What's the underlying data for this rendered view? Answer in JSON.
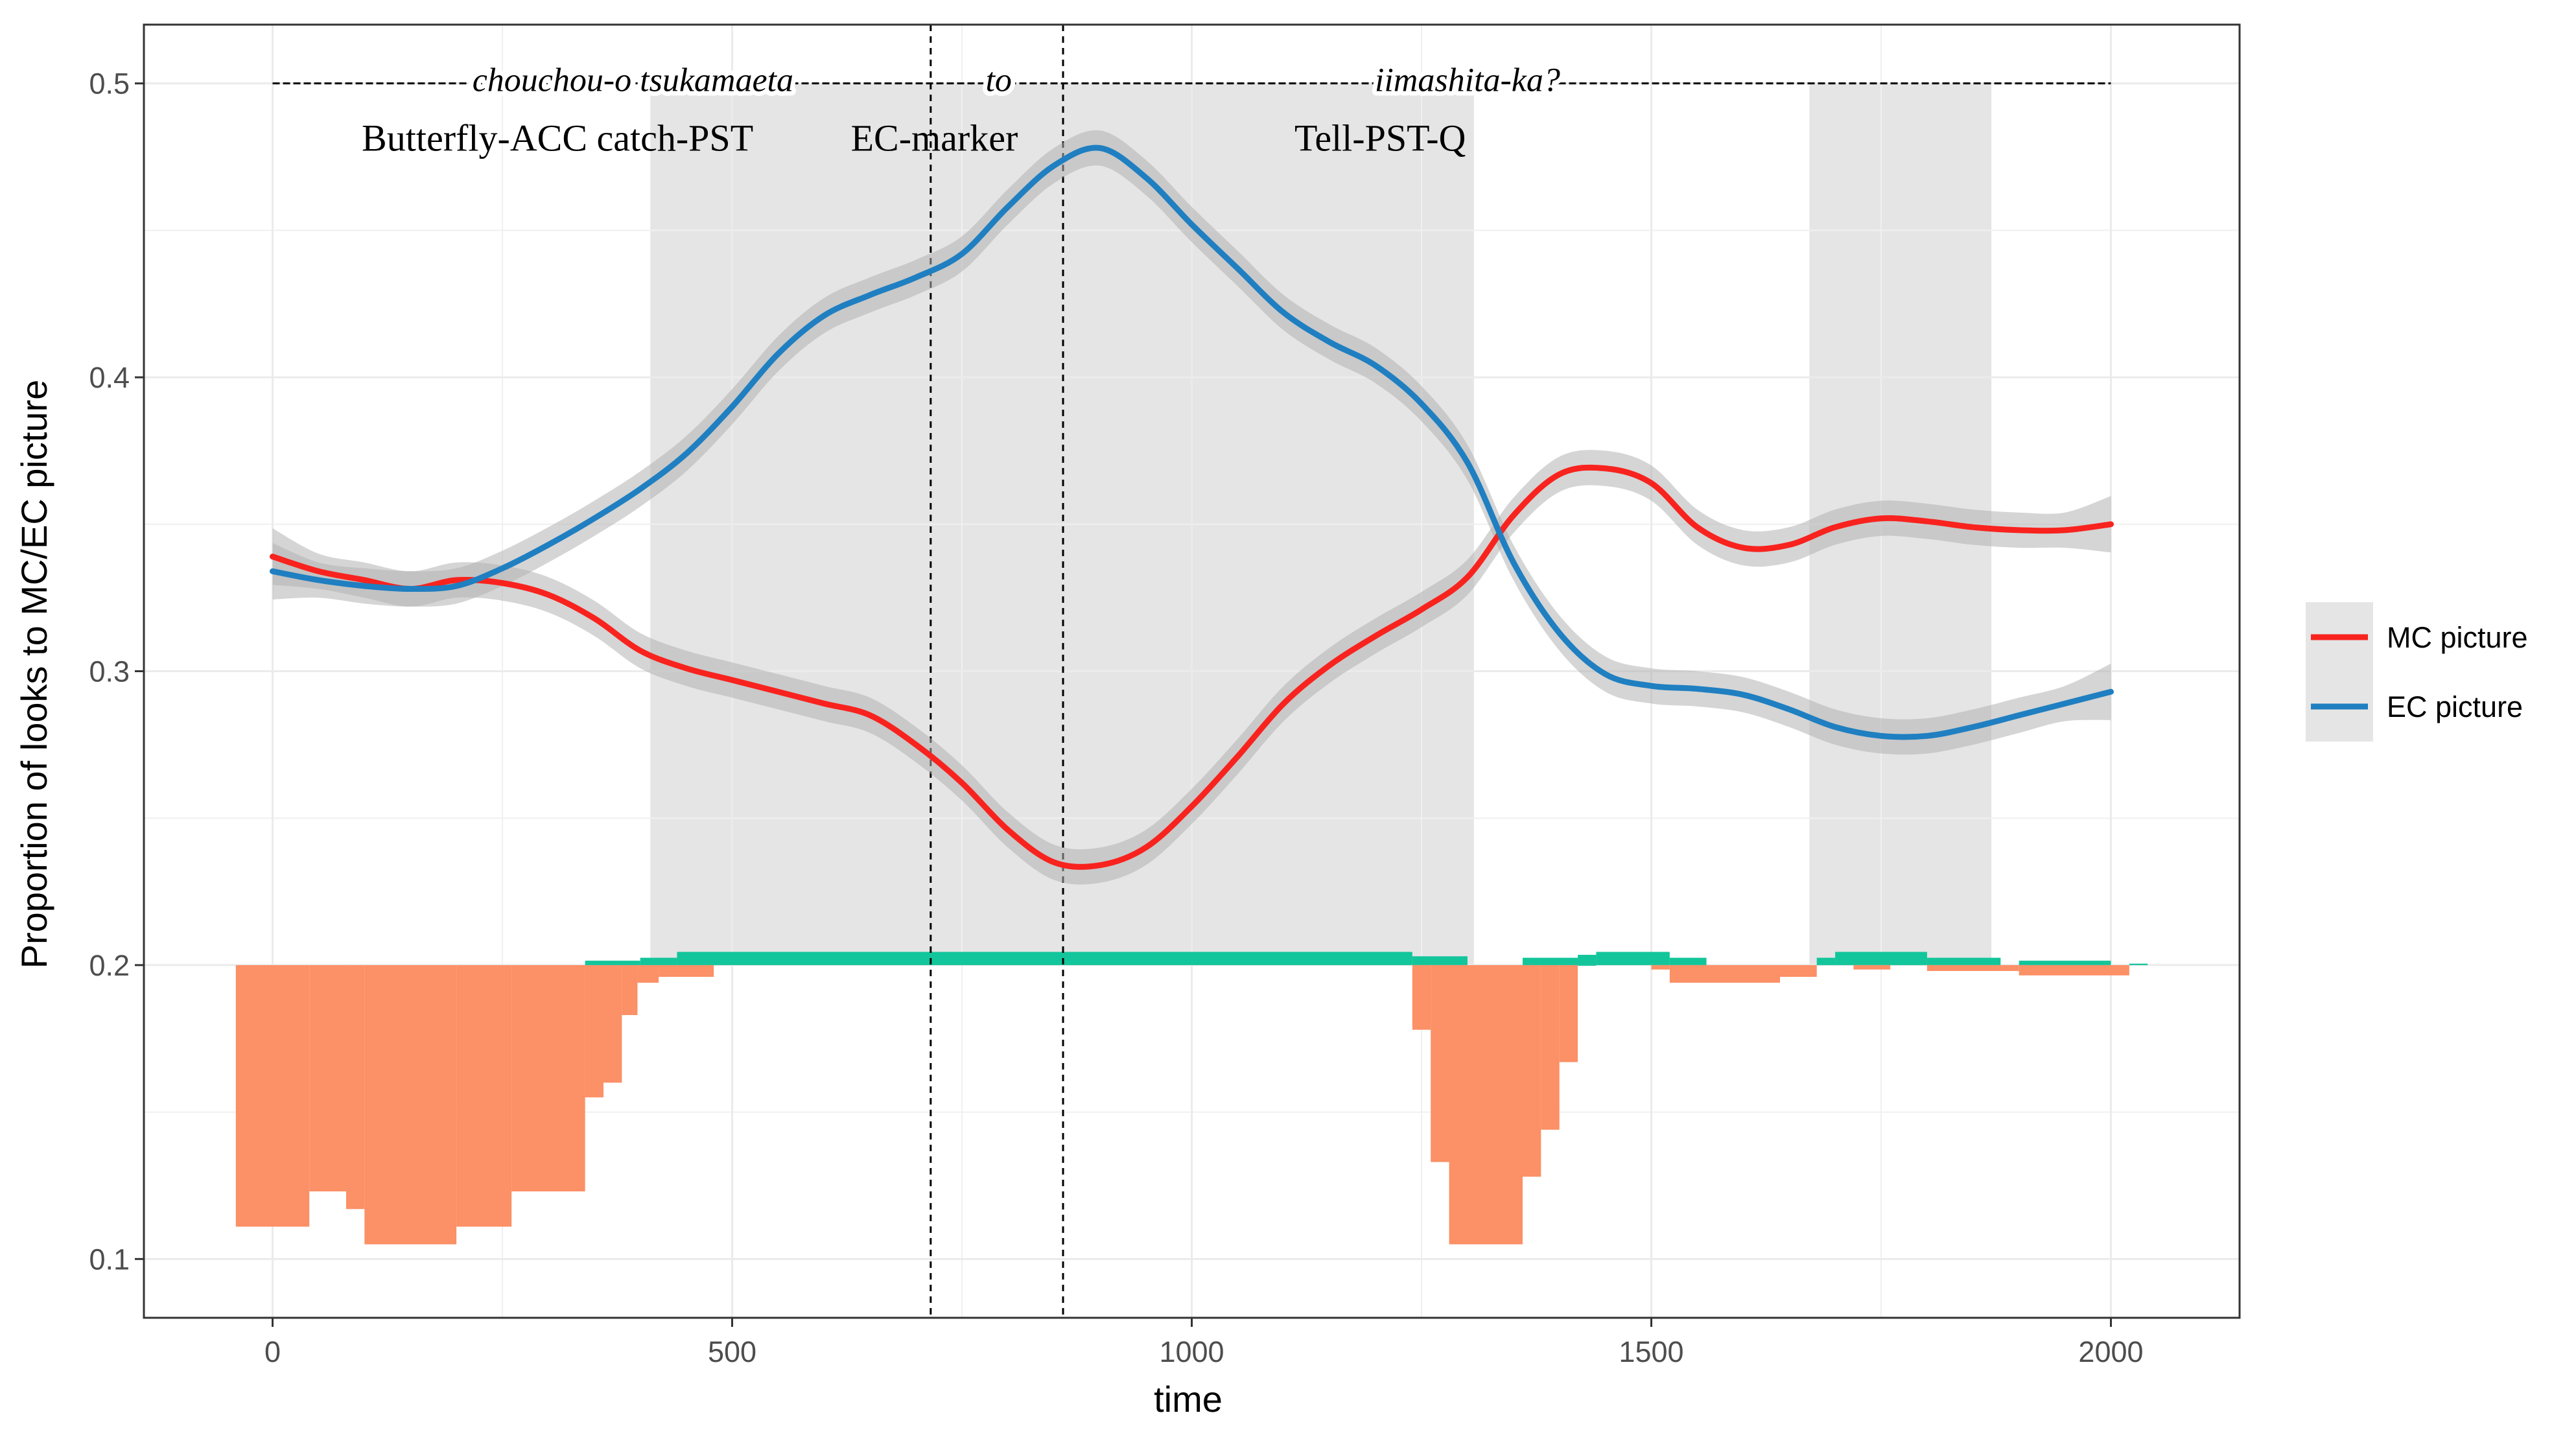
{
  "chart_data": {
    "type": "line",
    "title": "",
    "xlabel": "time",
    "ylabel": "Proportion of looks to MC/EC picture",
    "xlim": [
      -140,
      2140
    ],
    "ylim": [
      0.08,
      0.52
    ],
    "xticks": [
      0,
      500,
      1000,
      1500,
      2000
    ],
    "yticks": [
      0.1,
      0.2,
      0.3,
      0.4,
      0.5
    ],
    "grid": true,
    "legend_position": "right",
    "colors": {
      "mc": "#f8231e",
      "ec": "#1f7fc1",
      "shade": "#e5e5e5",
      "ribbon": "#b3b3b3",
      "positive": "#13c59a",
      "negative": "#fc9066"
    },
    "shaded_regions": [
      [
        411,
        1307
      ],
      [
        1672,
        1870
      ]
    ],
    "vlines": [
      716,
      860
    ],
    "annotations": {
      "sentence_row": {
        "y": 0.5,
        "x_start": 0,
        "x_end": 2000,
        "words": [
          {
            "text": "chouchou-o tsukamaeta",
            "x": 392
          },
          {
            "text": "to",
            "x": 790
          },
          {
            "text": "iimashita-ka?",
            "x": 1300
          }
        ]
      },
      "gloss_row": {
        "y": 0.482,
        "labels": [
          {
            "text": "Butterfly-ACC catch-PST",
            "x": 310
          },
          {
            "text": "EC-marker",
            "x": 720
          },
          {
            "text": "Tell-PST-Q",
            "x": 1205
          }
        ]
      }
    },
    "series": [
      {
        "name": "MC picture",
        "color": "#f8231e",
        "x": [
          0,
          50,
          100,
          150,
          200,
          250,
          300,
          350,
          400,
          450,
          500,
          550,
          600,
          650,
          700,
          750,
          800,
          850,
          900,
          950,
          1000,
          1050,
          1100,
          1150,
          1200,
          1250,
          1300,
          1350,
          1400,
          1450,
          1500,
          1550,
          1600,
          1650,
          1700,
          1750,
          1800,
          1850,
          1900,
          1950,
          2000
        ],
        "y": [
          0.339,
          0.334,
          0.331,
          0.328,
          0.331,
          0.33,
          0.326,
          0.318,
          0.307,
          0.301,
          0.297,
          0.293,
          0.289,
          0.285,
          0.275,
          0.262,
          0.246,
          0.235,
          0.234,
          0.24,
          0.254,
          0.271,
          0.289,
          0.302,
          0.312,
          0.321,
          0.332,
          0.353,
          0.367,
          0.369,
          0.364,
          0.349,
          0.342,
          0.343,
          0.349,
          0.352,
          0.351,
          0.349,
          0.348,
          0.348,
          0.35
        ],
        "ci_halfwidth": 0.006
      },
      {
        "name": "EC picture",
        "color": "#1f7fc1",
        "x": [
          0,
          50,
          100,
          150,
          200,
          250,
          300,
          350,
          400,
          450,
          500,
          550,
          600,
          650,
          700,
          750,
          800,
          850,
          900,
          950,
          1000,
          1050,
          1100,
          1150,
          1200,
          1250,
          1300,
          1350,
          1400,
          1450,
          1500,
          1550,
          1600,
          1650,
          1700,
          1750,
          1800,
          1850,
          1900,
          1950,
          2000
        ],
        "y": [
          0.334,
          0.331,
          0.329,
          0.328,
          0.329,
          0.335,
          0.343,
          0.352,
          0.362,
          0.374,
          0.39,
          0.408,
          0.421,
          0.428,
          0.434,
          0.442,
          0.458,
          0.472,
          0.478,
          0.468,
          0.452,
          0.437,
          0.422,
          0.412,
          0.404,
          0.391,
          0.371,
          0.337,
          0.313,
          0.299,
          0.295,
          0.294,
          0.292,
          0.287,
          0.281,
          0.278,
          0.278,
          0.281,
          0.285,
          0.289,
          0.293
        ],
        "ci_halfwidth": 0.006
      }
    ],
    "difference_bars": {
      "baseline": 0.2,
      "bars": [
        {
          "x0": -40,
          "x1": 40,
          "y": 0.111
        },
        {
          "x0": 40,
          "x1": 80,
          "y": 0.123
        },
        {
          "x0": 80,
          "x1": 100,
          "y": 0.117
        },
        {
          "x0": 100,
          "x1": 200,
          "y": 0.105
        },
        {
          "x0": 200,
          "x1": 260,
          "y": 0.111
        },
        {
          "x0": 260,
          "x1": 340,
          "y": 0.123
        },
        {
          "x0": 340,
          "x1": 360,
          "y": 0.155
        },
        {
          "x0": 360,
          "x1": 380,
          "y": 0.16
        },
        {
          "x0": 380,
          "x1": 397,
          "y": 0.183
        },
        {
          "x0": 397,
          "x1": 420,
          "y": 0.194
        },
        {
          "x0": 420,
          "x1": 480,
          "y": 0.196
        },
        {
          "x0": 340,
          "x1": 400,
          "y": 0.2015
        },
        {
          "x0": 400,
          "x1": 440,
          "y": 0.2025
        },
        {
          "x0": 440,
          "x1": 860,
          "y": 0.2045
        },
        {
          "x0": 860,
          "x1": 1240,
          "y": 0.2045
        },
        {
          "x0": 1240,
          "x1": 1300,
          "y": 0.203
        },
        {
          "x0": 1240,
          "x1": 1260,
          "y": 0.178
        },
        {
          "x0": 1260,
          "x1": 1280,
          "y": 0.133
        },
        {
          "x0": 1280,
          "x1": 1360,
          "y": 0.105
        },
        {
          "x0": 1360,
          "x1": 1380,
          "y": 0.128
        },
        {
          "x0": 1380,
          "x1": 1400,
          "y": 0.144
        },
        {
          "x0": 1400,
          "x1": 1420,
          "y": 0.167
        },
        {
          "x0": 1420,
          "x1": 1440,
          "y": 0.2
        },
        {
          "x0": 1360,
          "x1": 1420,
          "y": 0.2025
        },
        {
          "x0": 1420,
          "x1": 1440,
          "y": 0.2035
        },
        {
          "x0": 1440,
          "x1": 1520,
          "y": 0.2045
        },
        {
          "x0": 1520,
          "x1": 1560,
          "y": 0.2025
        },
        {
          "x0": 1500,
          "x1": 1520,
          "y": 0.1985
        },
        {
          "x0": 1520,
          "x1": 1640,
          "y": 0.194
        },
        {
          "x0": 1640,
          "x1": 1680,
          "y": 0.196
        },
        {
          "x0": 1680,
          "x1": 1700,
          "y": 0.2025
        },
        {
          "x0": 1700,
          "x1": 1800,
          "y": 0.2045
        },
        {
          "x0": 1800,
          "x1": 1880,
          "y": 0.2025
        },
        {
          "x0": 1720,
          "x1": 1760,
          "y": 0.1985
        },
        {
          "x0": 1800,
          "x1": 1900,
          "y": 0.198
        },
        {
          "x0": 1900,
          "x1": 2000,
          "y": 0.2015
        },
        {
          "x0": 1900,
          "x1": 2020,
          "y": 0.1965
        },
        {
          "x0": 2020,
          "x1": 2040,
          "y": 0.2005
        }
      ]
    }
  }
}
